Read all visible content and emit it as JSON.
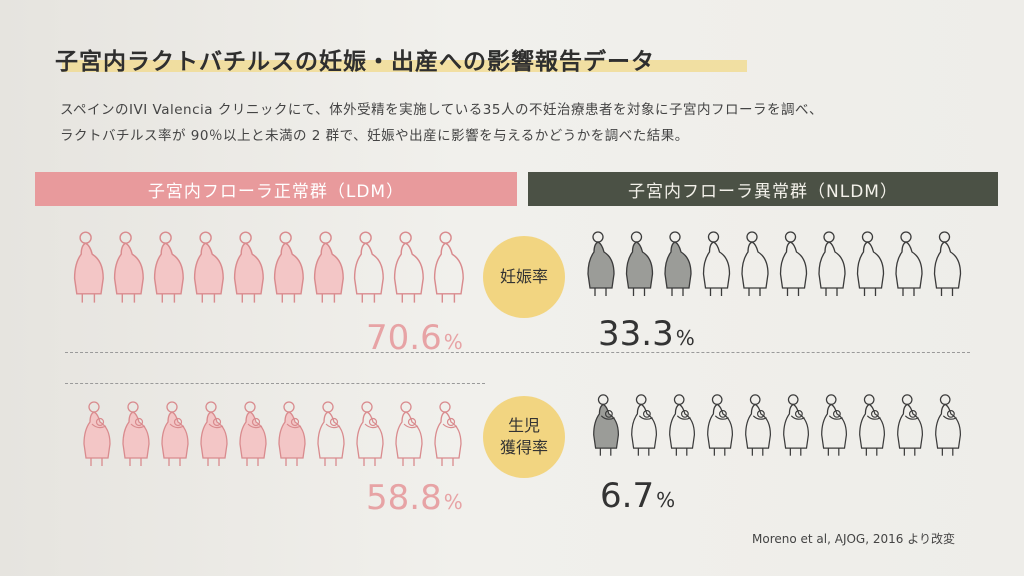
{
  "title": "子宮内ラクトバチルスの妊娠・出産への影響報告データ",
  "description": [
    "スペインのIVI Valencia クリニックにて、体外受精を実施している35人の不妊治療患者を対象に子宮内フローラを調べ、",
    "ラクトバチルス率が 90％以上と未満の 2 群で、妊娠や出産に影響を与えるかどうかを調べた結果。"
  ],
  "groups": {
    "ldm": {
      "label": "子宮内フローラ正常群（LDM）",
      "color": "#e89a9c"
    },
    "nldm": {
      "label": "子宮内フローラ異常群（NLDM）",
      "color": "#4b5145"
    }
  },
  "metrics": {
    "pregnancy": {
      "label": "妊娠率"
    },
    "live_birth": {
      "label_line1": "生児",
      "label_line2": "獲得率"
    }
  },
  "percent_unit": "%",
  "source": "Moreno et al, AJOG, 2016 より改変",
  "chart_data": {
    "type": "bar",
    "categories": [
      "妊娠率",
      "生児獲得率"
    ],
    "series": [
      {
        "name": "子宮内フローラ正常群（LDM）",
        "values": [
          70.6,
          58.8
        ],
        "labels": [
          "70.6",
          "58.8"
        ],
        "color": "#e89a9c"
      },
      {
        "name": "子宮内フローラ異常群（NLDM）",
        "values": [
          33.3,
          6.7
        ],
        "labels": [
          "33.3",
          "6.7"
        ],
        "color": "#4b5145"
      }
    ],
    "ylim": [
      0,
      100
    ]
  }
}
